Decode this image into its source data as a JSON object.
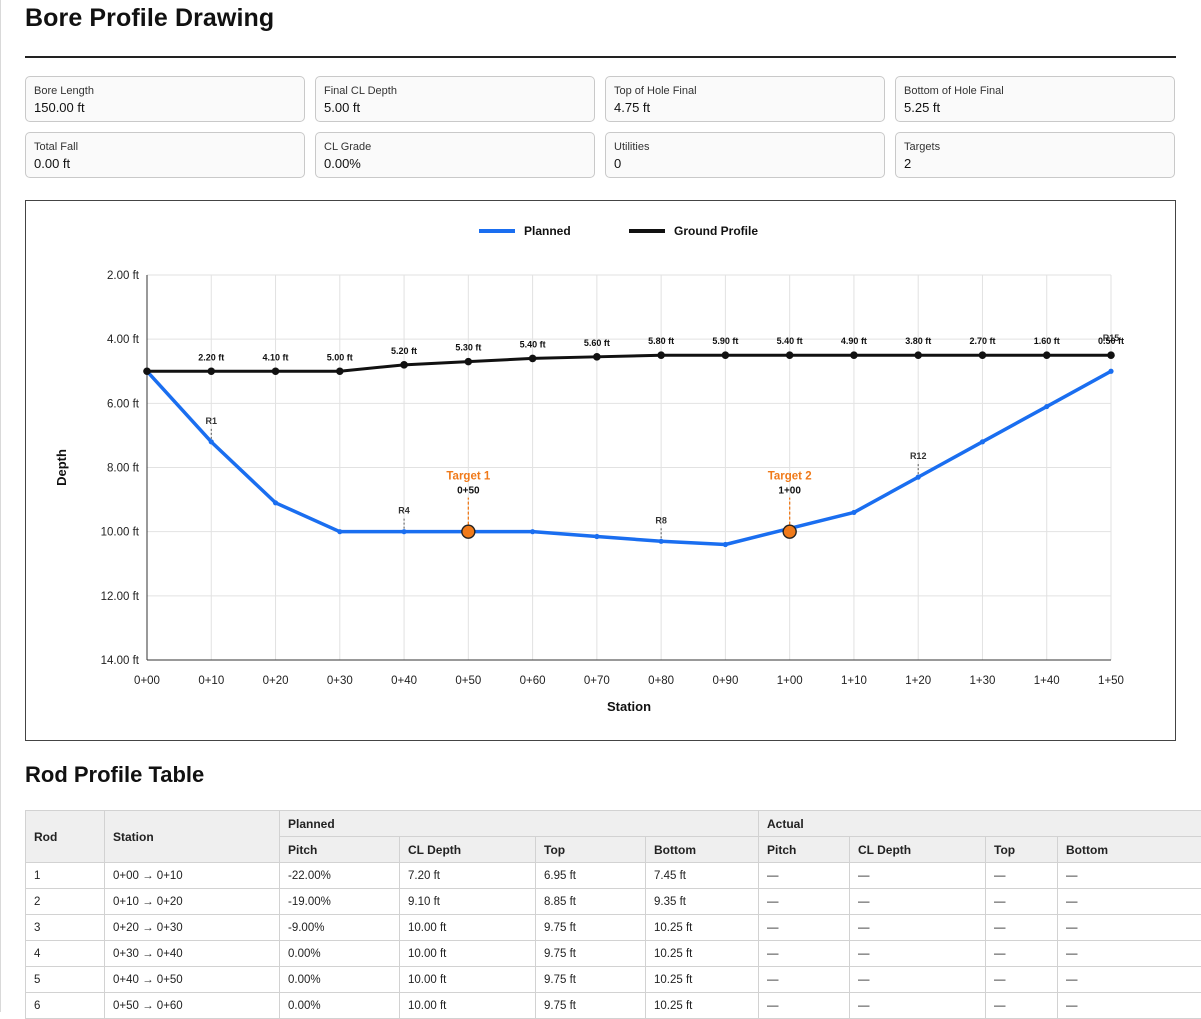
{
  "page": {
    "title": "Bore Profile Drawing",
    "table_title": "Rod Profile Table"
  },
  "summary": [
    {
      "label": "Bore Length",
      "value": "150.00 ft"
    },
    {
      "label": "Final CL Depth",
      "value": "5.00 ft"
    },
    {
      "label": "Top of Hole Final",
      "value": "4.75 ft"
    },
    {
      "label": "Bottom of Hole Final",
      "value": "5.25 ft"
    },
    {
      "label": "Total Fall",
      "value": "0.00 ft"
    },
    {
      "label": "CL Grade",
      "value": "0.00%"
    },
    {
      "label": "Utilities",
      "value": "0"
    },
    {
      "label": "Targets",
      "value": "2"
    }
  ],
  "chart_data": {
    "type": "line",
    "xlabel": "Station",
    "ylabel": "Depth",
    "x_ticks": [
      "0+00",
      "0+10",
      "0+20",
      "0+30",
      "0+40",
      "0+50",
      "0+60",
      "0+70",
      "0+80",
      "0+90",
      "1+00",
      "1+10",
      "1+20",
      "1+30",
      "1+40",
      "1+50"
    ],
    "y_ticks": [
      "2.00 ft",
      "4.00 ft",
      "6.00 ft",
      "8.00 ft",
      "10.00 ft",
      "12.00 ft",
      "14.00 ft"
    ],
    "ylim": [
      2,
      14
    ],
    "y_inverted": true,
    "xlim": [
      0,
      150
    ],
    "grid": true,
    "legend_position": "top",
    "series": [
      {
        "name": "Planned",
        "color": "#1a6ef0",
        "x": [
          0,
          10,
          20,
          30,
          40,
          50,
          60,
          70,
          80,
          90,
          100,
          110,
          120,
          130,
          140,
          150
        ],
        "y": [
          5.0,
          7.2,
          9.1,
          10.0,
          10.0,
          10.0,
          10.0,
          10.15,
          10.3,
          10.4,
          9.9,
          9.4,
          8.3,
          7.2,
          6.1,
          5.0
        ]
      },
      {
        "name": "Ground Profile",
        "color": "#111111",
        "x": [
          0,
          10,
          20,
          30,
          40,
          50,
          60,
          70,
          80,
          90,
          100,
          110,
          120,
          130,
          140,
          150
        ],
        "y": [
          5.0,
          5.0,
          5.0,
          5.0,
          4.8,
          4.7,
          4.6,
          4.55,
          4.5,
          4.5,
          4.5,
          4.5,
          4.5,
          4.5,
          4.5,
          4.5
        ],
        "point_labels": [
          "",
          "2.20 ft",
          "4.10 ft",
          "5.00 ft",
          "5.20 ft",
          "5.30 ft",
          "5.40 ft",
          "5.60 ft",
          "5.80 ft",
          "5.90 ft",
          "5.40 ft",
          "4.90 ft",
          "3.80 ft",
          "2.70 ft",
          "1.60 ft",
          "0.50 ft"
        ]
      }
    ],
    "rod_markers": [
      {
        "label": "R1",
        "x": 10
      },
      {
        "label": "R4",
        "x": 40
      },
      {
        "label": "R8",
        "x": 80
      },
      {
        "label": "R12",
        "x": 120
      },
      {
        "label": "R15",
        "x": 150
      }
    ],
    "targets": [
      {
        "name": "Target 1",
        "station": "0+50",
        "x": 50,
        "y": 10.0
      },
      {
        "name": "Target 2",
        "station": "1+00",
        "x": 100,
        "y": 10.0
      }
    ],
    "target_color": "#f07a1a"
  },
  "table": {
    "headers": {
      "rod": "Rod",
      "station": "Station",
      "planned": "Planned",
      "actual": "Actual",
      "pitch": "Pitch",
      "cl_depth": "CL Depth",
      "top": "Top",
      "bottom": "Bottom"
    },
    "rows": [
      {
        "rod": "1",
        "station": "0+00 → 0+10",
        "pitch": "-22.00%",
        "cl": "7.20 ft",
        "top": "6.95 ft",
        "bottom": "7.45 ft",
        "a_pitch": "—",
        "a_cl": "—",
        "a_top": "—",
        "a_bottom": "—"
      },
      {
        "rod": "2",
        "station": "0+10 → 0+20",
        "pitch": "-19.00%",
        "cl": "9.10 ft",
        "top": "8.85 ft",
        "bottom": "9.35 ft",
        "a_pitch": "—",
        "a_cl": "—",
        "a_top": "—",
        "a_bottom": "—"
      },
      {
        "rod": "3",
        "station": "0+20 → 0+30",
        "pitch": "-9.00%",
        "cl": "10.00 ft",
        "top": "9.75 ft",
        "bottom": "10.25 ft",
        "a_pitch": "—",
        "a_cl": "—",
        "a_top": "—",
        "a_bottom": "—"
      },
      {
        "rod": "4",
        "station": "0+30 → 0+40",
        "pitch": "0.00%",
        "cl": "10.00 ft",
        "top": "9.75 ft",
        "bottom": "10.25 ft",
        "a_pitch": "—",
        "a_cl": "—",
        "a_top": "—",
        "a_bottom": "—"
      },
      {
        "rod": "5",
        "station": "0+40 → 0+50",
        "pitch": "0.00%",
        "cl": "10.00 ft",
        "top": "9.75 ft",
        "bottom": "10.25 ft",
        "a_pitch": "—",
        "a_cl": "—",
        "a_top": "—",
        "a_bottom": "—"
      },
      {
        "rod": "6",
        "station": "0+50 → 0+60",
        "pitch": "0.00%",
        "cl": "10.00 ft",
        "top": "9.75 ft",
        "bottom": "10.25 ft",
        "a_pitch": "—",
        "a_cl": "—",
        "a_top": "—",
        "a_bottom": "—"
      }
    ]
  }
}
